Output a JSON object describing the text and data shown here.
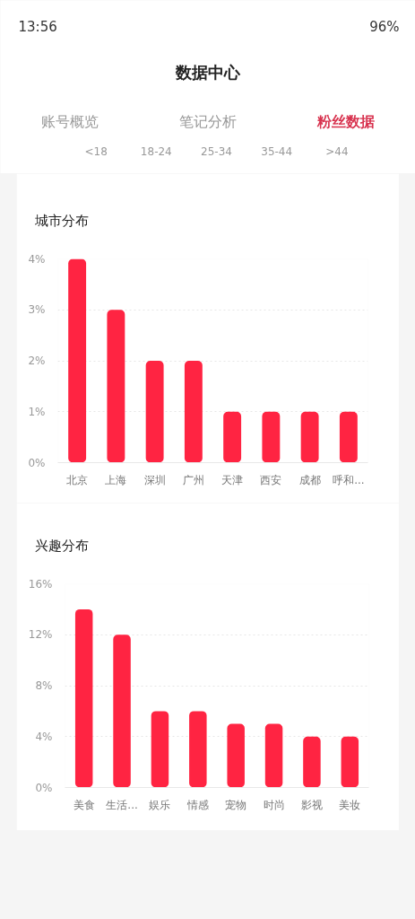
{
  "chart_data": [
    {
      "type": "other",
      "title": "数据中心",
      "annotations": [
        "13:56",
        "96%",
        "账号概览",
        "笔记分析",
        "粉丝数据",
        "<18",
        "18-24",
        "25-34",
        "35-44",
        ">44"
      ]
    },
    {
      "type": "bar",
      "title": "城市分布",
      "categories": [
        "北京",
        "上海",
        "深圳",
        "广州",
        "天津",
        "西安",
        "成都",
        "呼和..."
      ],
      "values": [
        4,
        3,
        2,
        2,
        1,
        1,
        1,
        1
      ],
      "color": "#ff2442",
      "ylim": [
        0,
        4
      ],
      "yticks": [
        {
          "value": 0,
          "label": "0%"
        },
        {
          "value": 1,
          "label": "1%"
        },
        {
          "value": 2,
          "label": "2%"
        },
        {
          "value": 3,
          "label": "3%"
        },
        {
          "value": 4,
          "label": "4%"
        }
      ],
      "grid": "y"
    },
    {
      "type": "bar",
      "title": "兴趣分布",
      "categories": [
        "美食",
        "生活...",
        "娱乐",
        "情感",
        "宠物",
        "时尚",
        "影视",
        "美妆"
      ],
      "values": [
        14,
        12,
        6,
        6,
        5,
        5,
        4,
        4
      ],
      "color": "#ff2442",
      "ylim": [
        0,
        16
      ],
      "yticks": [
        {
          "value": 0,
          "label": "0%"
        },
        {
          "value": 4,
          "label": "4%"
        },
        {
          "value": 8,
          "label": "8%"
        },
        {
          "value": 12,
          "label": "12%"
        },
        {
          "value": 16,
          "label": "16%"
        }
      ],
      "grid": "y"
    }
  ]
}
